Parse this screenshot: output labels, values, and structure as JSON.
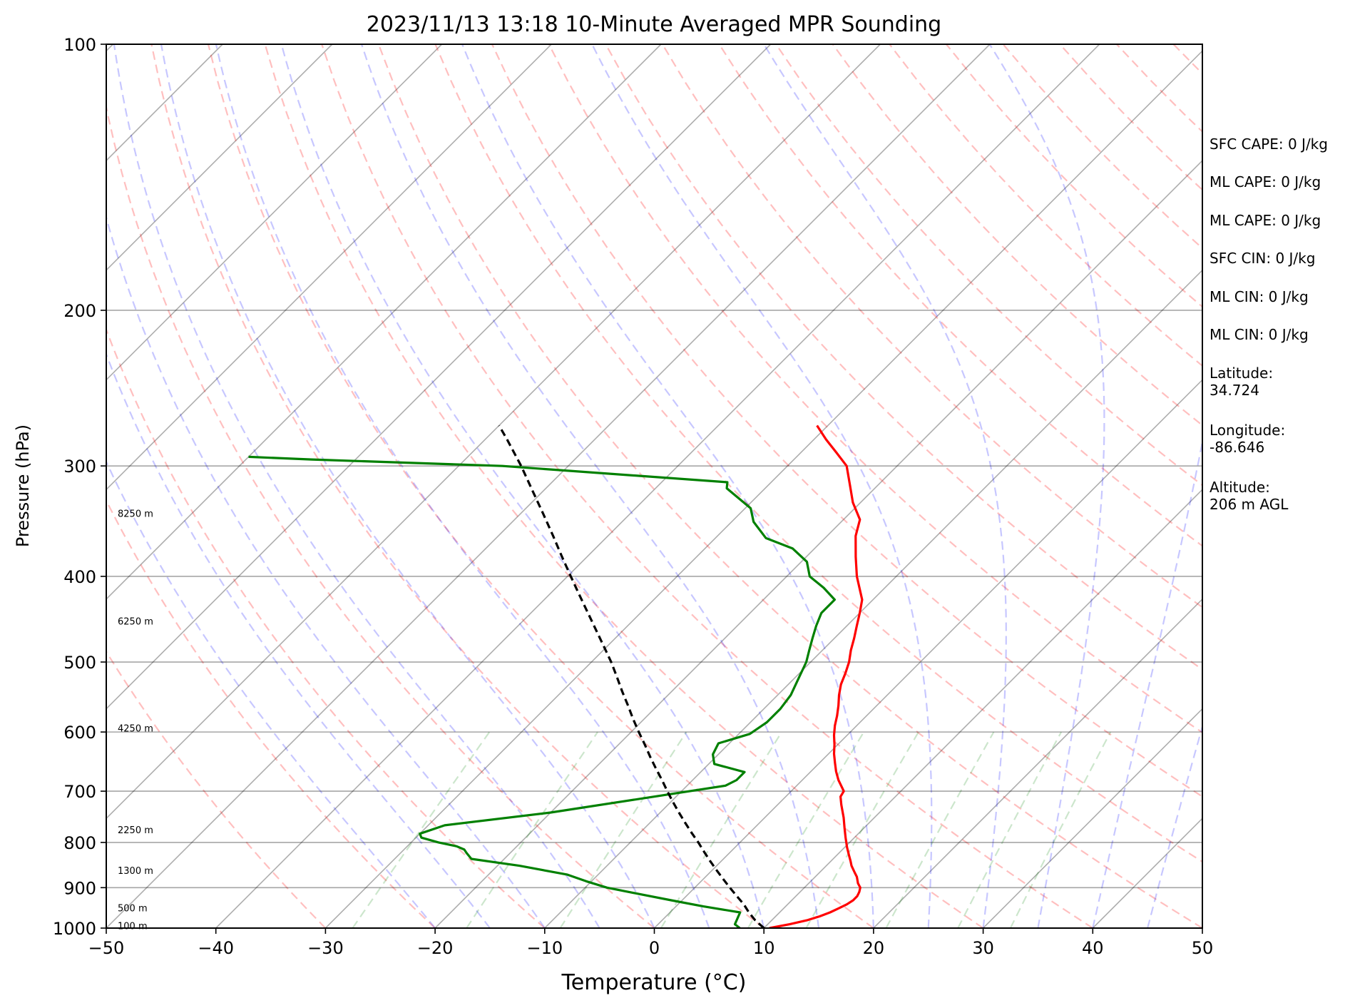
{
  "chart_data": {
    "type": "line",
    "title": "2023/11/13 13:18 10-Minute Averaged MPR Sounding",
    "xlabel": "Temperature (°C)",
    "ylabel": "Pressure (hPa)",
    "xlim": [
      -50,
      50
    ],
    "ylim": [
      1000,
      100
    ],
    "yscale": "log",
    "skew": "skew-T log-P",
    "xticks": [
      "−50",
      "−40",
      "−30",
      "−20",
      "−10",
      "0",
      "10",
      "20",
      "30",
      "40",
      "50"
    ],
    "yticks": [
      "100",
      "200",
      "300",
      "400",
      "500",
      "600",
      "700",
      "800",
      "900",
      "1000"
    ],
    "grid": true,
    "altitude_labels": [
      {
        "p": 995,
        "label": "100 m"
      },
      {
        "p": 950,
        "label": "500 m"
      },
      {
        "p": 862,
        "label": "1300 m"
      },
      {
        "p": 775,
        "label": "2250 m"
      },
      {
        "p": 595,
        "label": "4250 m"
      },
      {
        "p": 450,
        "label": "6250 m"
      },
      {
        "p": 340,
        "label": "8250 m"
      }
    ],
    "series": [
      {
        "kind": "temperature",
        "color": "#ff0000",
        "points": [
          [
            1000,
            10.5
          ],
          [
            990,
            12.0
          ],
          [
            980,
            13.2
          ],
          [
            970,
            14.0
          ],
          [
            960,
            14.6
          ],
          [
            950,
            15.0
          ],
          [
            940,
            15.4
          ],
          [
            930,
            15.6
          ],
          [
            920,
            15.6
          ],
          [
            910,
            15.4
          ],
          [
            900,
            15.1
          ],
          [
            890,
            14.5
          ],
          [
            875,
            13.8
          ],
          [
            865,
            13.2
          ],
          [
            850,
            12.3
          ],
          [
            840,
            11.8
          ],
          [
            825,
            11.0
          ],
          [
            810,
            10.2
          ],
          [
            790,
            9.2
          ],
          [
            770,
            8.2
          ],
          [
            750,
            7.2
          ],
          [
            725,
            5.8
          ],
          [
            710,
            5.0
          ],
          [
            700,
            4.8
          ],
          [
            680,
            3.3
          ],
          [
            665,
            2.3
          ],
          [
            650,
            1.4
          ],
          [
            635,
            0.5
          ],
          [
            620,
            -0.3
          ],
          [
            605,
            -1.2
          ],
          [
            590,
            -2.0
          ],
          [
            575,
            -2.7
          ],
          [
            560,
            -3.5
          ],
          [
            545,
            -4.4
          ],
          [
            530,
            -5.2
          ],
          [
            515,
            -5.8
          ],
          [
            500,
            -6.5
          ],
          [
            485,
            -7.4
          ],
          [
            470,
            -8.2
          ],
          [
            455,
            -9.1
          ],
          [
            440,
            -10.0
          ],
          [
            425,
            -11.0
          ],
          [
            400,
            -13.6
          ],
          [
            380,
            -15.5
          ],
          [
            360,
            -17.4
          ],
          [
            345,
            -18.5
          ],
          [
            330,
            -20.7
          ],
          [
            315,
            -22.6
          ],
          [
            300,
            -24.6
          ],
          [
            290,
            -26.7
          ],
          [
            280,
            -28.9
          ],
          [
            270,
            -31.0
          ]
        ]
      },
      {
        "kind": "dewpoint",
        "color": "#008000",
        "points": [
          [
            1000,
            7.8
          ],
          [
            990,
            7.0
          ],
          [
            980,
            6.8
          ],
          [
            970,
            6.6
          ],
          [
            960,
            6.4
          ],
          [
            945,
            2.5
          ],
          [
            930,
            -1.0
          ],
          [
            915,
            -4.5
          ],
          [
            900,
            -8.0
          ],
          [
            885,
            -10.5
          ],
          [
            870,
            -12.8
          ],
          [
            850,
            -18.0
          ],
          [
            835,
            -23.0
          ],
          [
            822,
            -24.0
          ],
          [
            815,
            -24.5
          ],
          [
            808,
            -25.5
          ],
          [
            800,
            -27.5
          ],
          [
            790,
            -29.5
          ],
          [
            782,
            -30.0
          ],
          [
            765,
            -28.5
          ],
          [
            740,
            -20.0
          ],
          [
            710,
            -12.0
          ],
          [
            690,
            -6.5
          ],
          [
            680,
            -6.0
          ],
          [
            666,
            -6.0
          ],
          [
            652,
            -9.5
          ],
          [
            636,
            -10.5
          ],
          [
            618,
            -11.0
          ],
          [
            603,
            -9.0
          ],
          [
            585,
            -8.5
          ],
          [
            565,
            -8.5
          ],
          [
            545,
            -8.8
          ],
          [
            525,
            -9.5
          ],
          [
            500,
            -10.4
          ],
          [
            485,
            -11.2
          ],
          [
            470,
            -12.0
          ],
          [
            455,
            -12.8
          ],
          [
            440,
            -13.5
          ],
          [
            425,
            -13.5
          ],
          [
            412,
            -15.6
          ],
          [
            400,
            -17.9
          ],
          [
            385,
            -19.5
          ],
          [
            372,
            -22.0
          ],
          [
            362,
            -25.4
          ],
          [
            347,
            -28.0
          ],
          [
            335,
            -29.5
          ],
          [
            318,
            -33.5
          ],
          [
            313,
            -34.0
          ],
          [
            300,
            -56.0
          ],
          [
            295,
            -74.0
          ],
          [
            293,
            -80.0
          ]
        ]
      },
      {
        "kind": "parcel",
        "color": "#000000",
        "points": [
          [
            1000,
            10.0
          ],
          [
            980,
            8.5
          ],
          [
            960,
            7.2
          ],
          [
            940,
            6.0
          ],
          [
            920,
            4.6
          ],
          [
            900,
            3.2
          ],
          [
            880,
            1.8
          ],
          [
            860,
            0.4
          ],
          [
            840,
            -1.0
          ],
          [
            820,
            -2.4
          ],
          [
            800,
            -3.8
          ],
          [
            780,
            -5.3
          ],
          [
            760,
            -6.8
          ],
          [
            740,
            -8.3
          ],
          [
            720,
            -9.8
          ],
          [
            700,
            -11.3
          ],
          [
            680,
            -12.8
          ],
          [
            660,
            -14.4
          ],
          [
            640,
            -16.0
          ],
          [
            620,
            -17.6
          ],
          [
            600,
            -19.3
          ],
          [
            580,
            -21.0
          ],
          [
            560,
            -22.7
          ],
          [
            540,
            -24.5
          ],
          [
            520,
            -26.3
          ],
          [
            500,
            -28.2
          ],
          [
            480,
            -30.3
          ],
          [
            460,
            -32.5
          ],
          [
            440,
            -34.8
          ],
          [
            420,
            -37.2
          ],
          [
            400,
            -39.7
          ],
          [
            380,
            -42.3
          ],
          [
            360,
            -45.0
          ],
          [
            340,
            -47.9
          ],
          [
            320,
            -51.0
          ],
          [
            300,
            -54.3
          ],
          [
            280,
            -58.0
          ],
          [
            270,
            -60.0
          ]
        ]
      }
    ],
    "reference_lines": {
      "dry_adiabats": "dashed #ff0000 alpha 0.25",
      "moist_adiabats": "dashed #0000ff alpha 0.25",
      "mixing_ratio": "dashed #008000 alpha 0.2",
      "isotherms": "solid #000000 alpha 0.3"
    }
  },
  "info_panel": {
    "sfc_cape": "SFC CAPE: 0 J/kg",
    "ml_cape": "ML CAPE: 0 J/kg",
    "mu_cape": "ML CAPE: 0 J/kg",
    "sfc_cin": "SFC CIN: 0 J/kg",
    "ml_cin": "ML CIN: 0 J/kg",
    "mu_cin": "ML CIN: 0 J/kg",
    "latitude": "Latitude:\n34.724",
    "longitude": "Longitude:\n-86.646",
    "altitude": "Altitude:\n206 m AGL"
  }
}
